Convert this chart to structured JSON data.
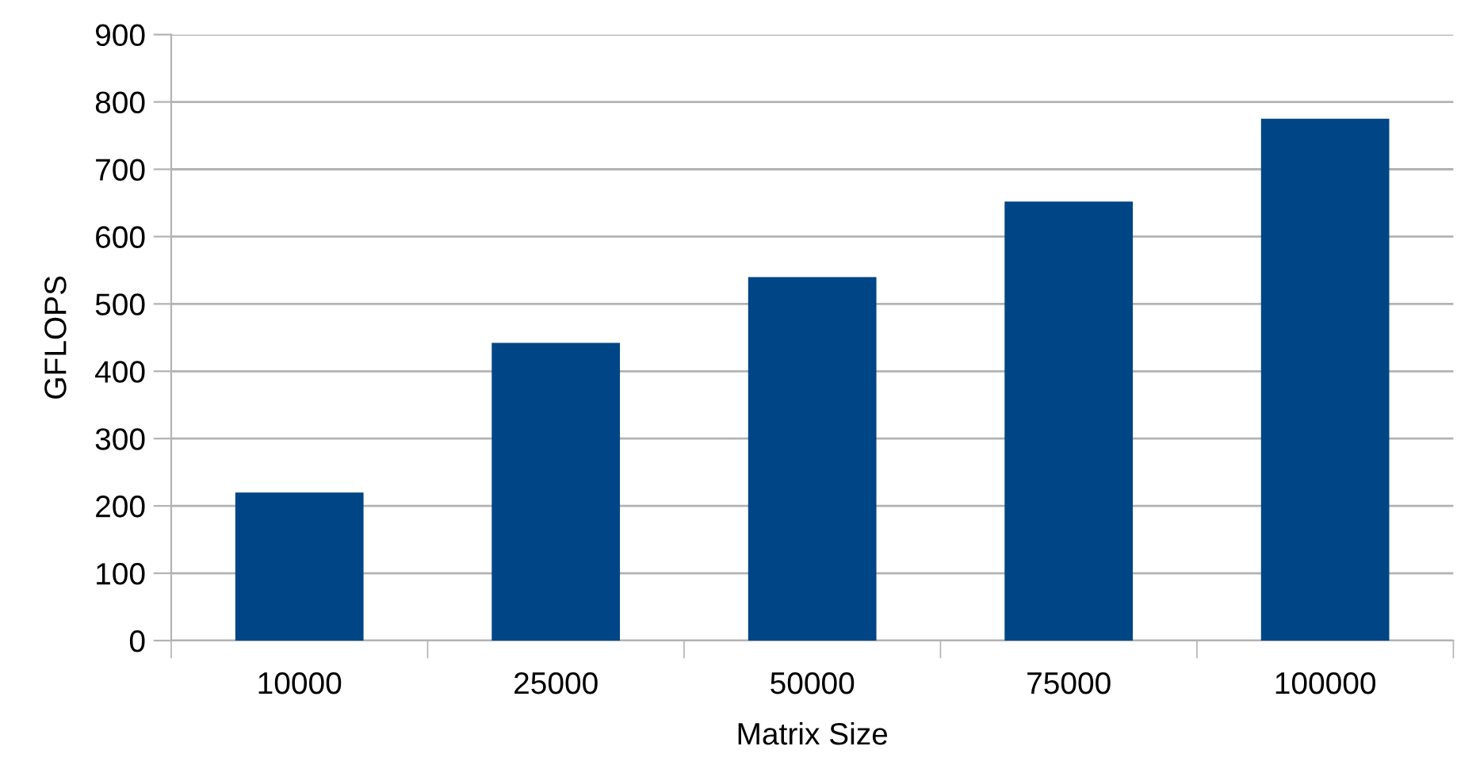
{
  "chart_data": {
    "type": "bar",
    "xlabel": "Matrix Size",
    "ylabel": "GFLOPS",
    "categories": [
      "10000",
      "25000",
      "50000",
      "75000",
      "100000"
    ],
    "values": [
      220,
      442,
      540,
      652,
      775
    ],
    "color": "#004586",
    "ylim": [
      0,
      900
    ],
    "yticks": [
      0,
      100,
      200,
      300,
      400,
      500,
      600,
      700,
      800,
      900
    ],
    "grid": "y",
    "legend": false
  }
}
